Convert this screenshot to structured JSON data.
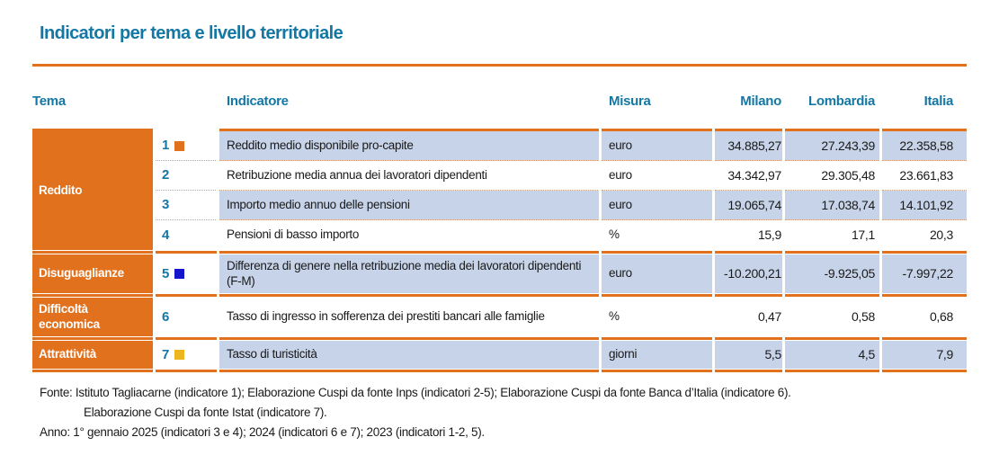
{
  "title": "Indicatori per tema e livello territoriale",
  "table": {
    "headers": {
      "tema": "Tema",
      "indicatore": "Indicatore",
      "misura": "Misura",
      "milano": "Milano",
      "lombardia": "Lombardia",
      "italia": "Italia"
    },
    "groups": [
      {
        "tema": "Reddito",
        "rows": [
          {
            "num": "1",
            "marker": "#E2711E",
            "indicatore": "Reddito medio disponibile pro-capite",
            "misura": "euro",
            "milano": "34.885,27",
            "lombardia": "27.243,39",
            "italia": "22.358,58"
          },
          {
            "num": "2",
            "indicatore": "Retribuzione media annua dei lavoratori dipendenti",
            "misura": "euro",
            "milano": "34.342,97",
            "lombardia": "29.305,48",
            "italia": "23.661,83"
          },
          {
            "num": "3",
            "indicatore": "Importo medio annuo delle pensioni",
            "misura": "euro",
            "milano": "19.065,74",
            "lombardia": "17.038,74",
            "italia": "14.101,92"
          },
          {
            "num": "4",
            "indicatore": "Pensioni di basso importo",
            "misura": "%",
            "milano": "15,9",
            "lombardia": "17,1",
            "italia": "20,3"
          }
        ]
      },
      {
        "tema": "Disuguaglianze",
        "rows": [
          {
            "num": "5",
            "marker": "#1414CC",
            "indicatore": "Differenza di genere nella retribuzione media dei lavoratori dipendenti (F-M)",
            "misura": "euro",
            "milano": "-10.200,21",
            "lombardia": "-9.925,05",
            "italia": "-7.997,22"
          }
        ]
      },
      {
        "tema": "Difficoltà economica",
        "rows": [
          {
            "num": "6",
            "indicatore": "Tasso di ingresso in sofferenza dei prestiti bancari alle famiglie",
            "misura": "%",
            "milano": "0,47",
            "lombardia": "0,58",
            "italia": "0,68"
          }
        ]
      },
      {
        "tema": "Attrattività",
        "rows": [
          {
            "num": "7",
            "marker": "#EDB51E",
            "indicatore": "Tasso di turisticità",
            "misura": "giorni",
            "milano": "5,5",
            "lombardia": "4,5",
            "italia": "7,9"
          }
        ]
      }
    ]
  },
  "footer": {
    "fonte_line1": "Fonte: Istituto Tagliacarne (indicatore 1); Elaborazione Cuspi da fonte Inps (indicatori 2-5); Elaborazione Cuspi da fonte Banca d’Italia (indicatore 6).",
    "fonte_line2": "Elaborazione Cuspi da fonte Istat (indicatore 7).",
    "anno_line": "Anno: 1° gennaio 2025 (indicatori 3 e 4); 2024 (indicatori 6 e 7); 2023 (indicatori 1-2, 5)."
  },
  "colors": {
    "accent_teal": "#1477A4",
    "accent_orange": "#E2711E",
    "row_blue": "#C7D3E8",
    "marker_orange": "#E2711E",
    "marker_blue": "#1414CC",
    "marker_yellow": "#EDB51E"
  }
}
